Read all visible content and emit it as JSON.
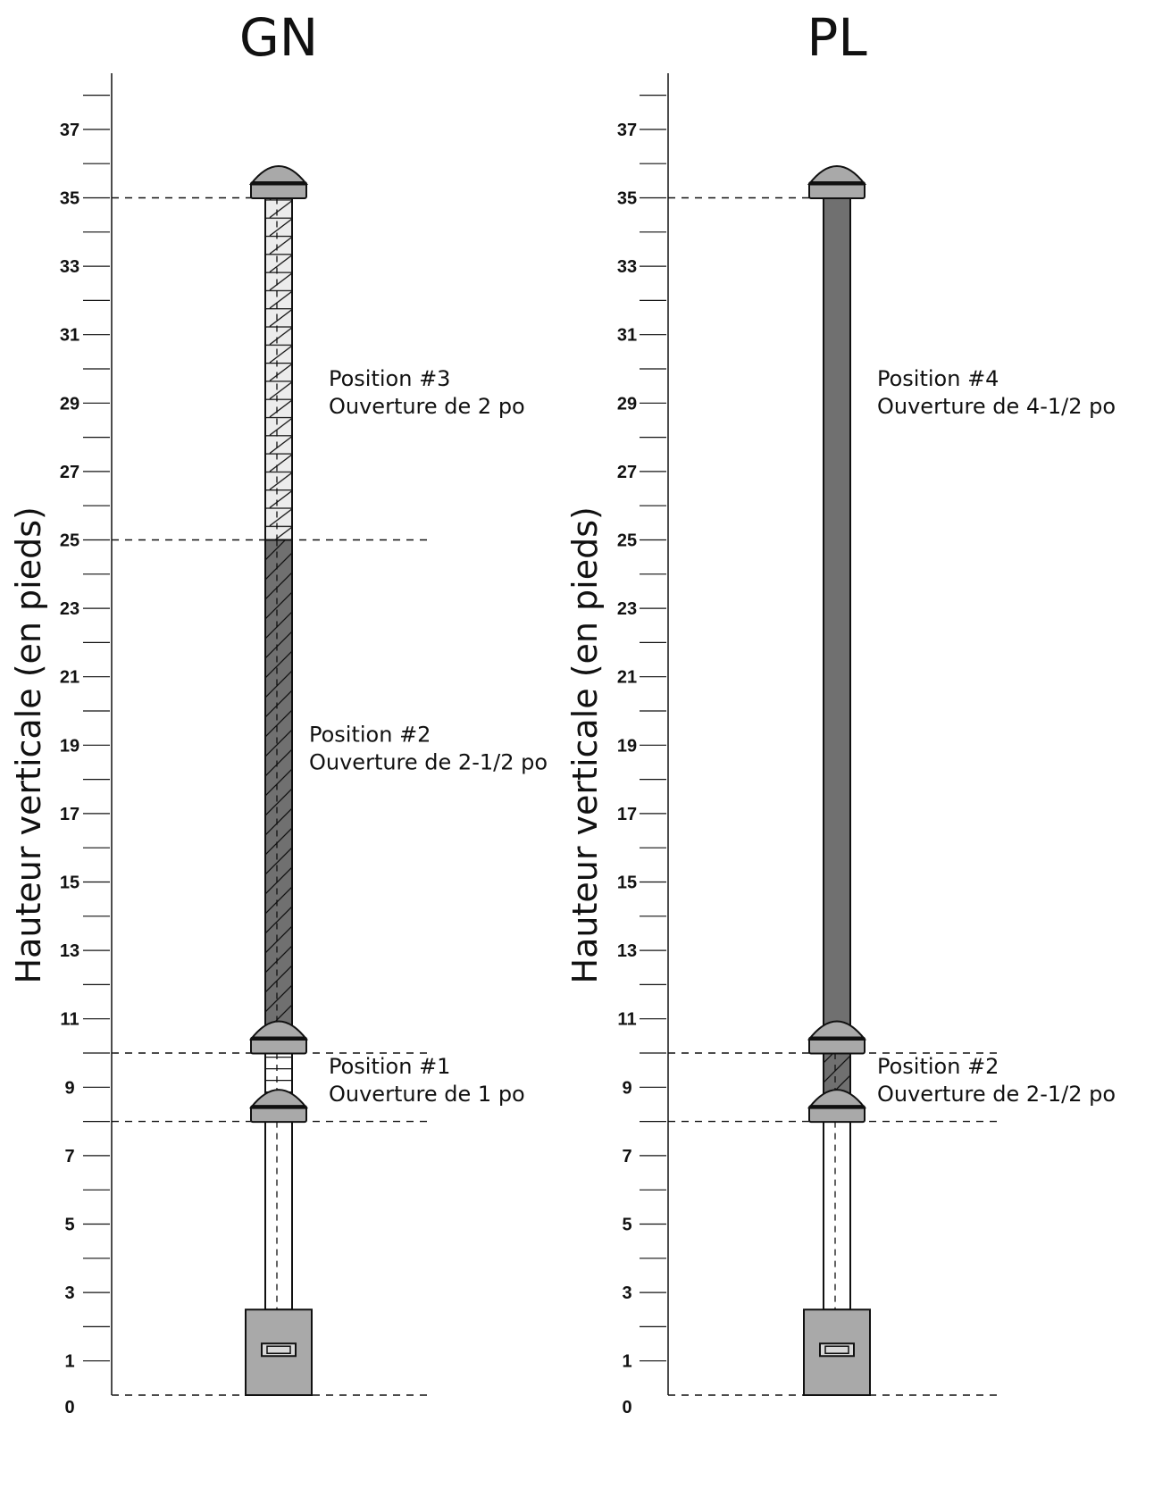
{
  "columns": [
    {
      "id": "gn",
      "title": "GN",
      "y_axis_label": "Hauteur verticale (en pieds)",
      "segments": [
        {
          "from": 8,
          "to": 10,
          "pattern": "ladder-light"
        },
        {
          "from": 10.6,
          "to": 25,
          "pattern": "hatch-dark"
        },
        {
          "from": 25,
          "to": 35,
          "pattern": "hatch-light"
        }
      ],
      "caps": [
        8.3,
        10.3,
        35.3
      ],
      "annotations": [
        {
          "line1": "Position #3",
          "line2": "Ouverture de 2 po",
          "y": 29.5
        },
        {
          "line1": "Position #2",
          "line2": "Ouverture de 2-1/2 po",
          "y": 19.1
        },
        {
          "line1": "Position #1",
          "line2": "Ouverture de 1 po",
          "y": 9.4
        }
      ],
      "reference_lines": [
        0,
        8,
        10,
        25,
        35
      ]
    },
    {
      "id": "pl",
      "title": "PL",
      "y_axis_label": "Hauteur verticale (en pieds)",
      "segments": [
        {
          "from": 8,
          "to": 10,
          "pattern": "hatch-dark"
        },
        {
          "from": 10.6,
          "to": 35,
          "pattern": "solid-dark"
        }
      ],
      "caps": [
        8.3,
        10.3,
        35.3
      ],
      "annotations": [
        {
          "line1": "Position #4",
          "line2": "Ouverture de 4-1/2 po",
          "y": 29.5
        },
        {
          "line1": "Position #2",
          "line2": "Ouverture de 2-1/2 po",
          "y": 9.4
        }
      ],
      "reference_lines": [
        0,
        8,
        10,
        35
      ]
    }
  ],
  "tick_labels": [
    "0",
    "1",
    "3",
    "5",
    "7",
    "9",
    "11",
    "13",
    "15",
    "17",
    "19",
    "21",
    "23",
    "25",
    "27",
    "29",
    "31",
    "33",
    "35",
    "37"
  ],
  "axis_range": [
    0,
    38
  ],
  "colors": {
    "pole_dark": "#707070",
    "pole_light": "#ececec",
    "cap": "#a9a9a9",
    "base_box": "#a9a9a9",
    "line": "#111111"
  }
}
